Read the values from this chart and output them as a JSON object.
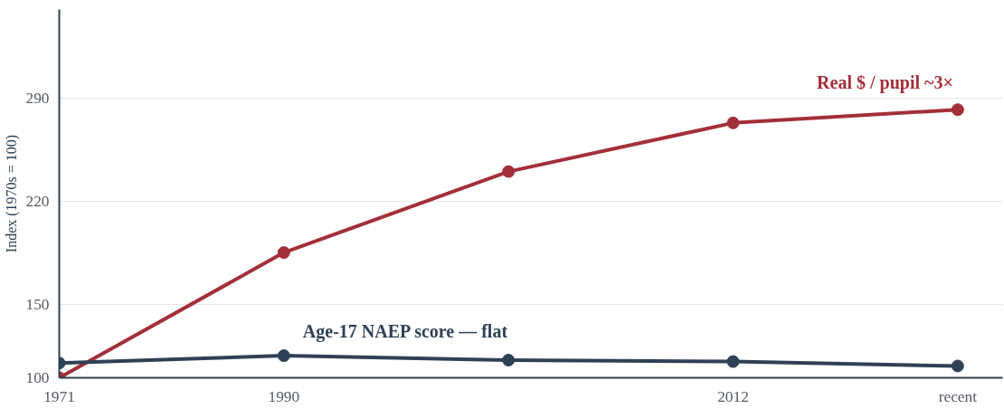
{
  "chart_data": {
    "type": "line",
    "ylabel": "Index (1970s = 100)",
    "categories": [
      "1971",
      "1990",
      null,
      "2012",
      "recent"
    ],
    "series": [
      {
        "name": "Real $ / pupil  ~3×",
        "color": "#a33039",
        "values": [
          100,
          185,
          240,
          273,
          282
        ]
      },
      {
        "name": "Age-17 NAEP score — flat",
        "color": "#2f4156",
        "values": [
          110,
          115,
          112,
          111,
          108
        ]
      }
    ],
    "ylim": [
      100,
      350
    ],
    "yticks": [
      100,
      150,
      220,
      290
    ],
    "grid": "y",
    "marker": "circle",
    "line_style": "solid"
  }
}
